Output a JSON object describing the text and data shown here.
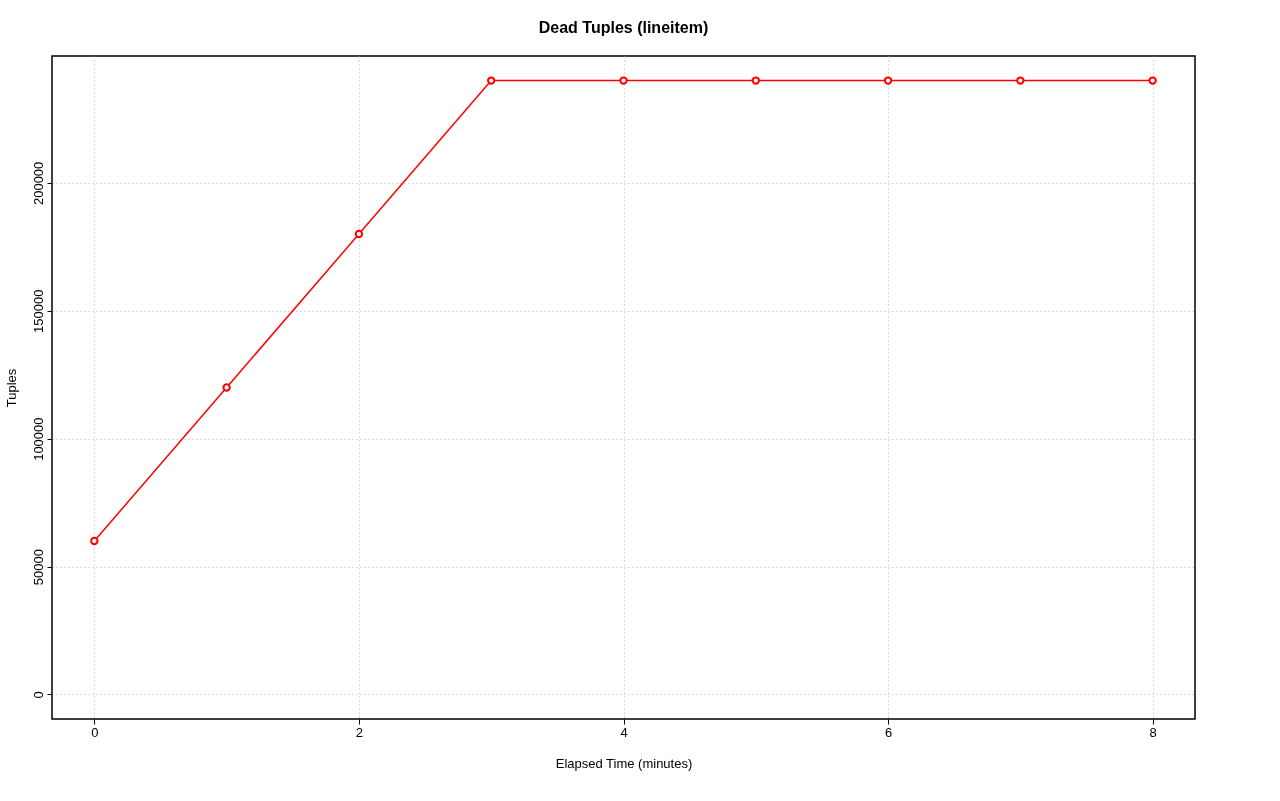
{
  "chart_data": {
    "type": "line",
    "title": "Dead Tuples (lineitem)",
    "xlabel": "Elapsed Time (minutes)",
    "ylabel": "Tuples",
    "x": [
      0,
      1,
      2,
      3,
      4,
      5,
      6,
      7,
      8
    ],
    "series": [
      {
        "color": "#ff0000",
        "values": [
          60000,
          120000,
          180000,
          240000,
          240000,
          240000,
          240000,
          240000,
          240000
        ]
      }
    ],
    "xlim": [
      -0.32,
      8.32
    ],
    "ylim": [
      -9600,
      249600
    ],
    "xticks": [
      0,
      2,
      4,
      6,
      8
    ],
    "yticks": [
      0,
      50000,
      100000,
      150000,
      200000
    ],
    "grid": true,
    "marker": "circle",
    "line_style": "solid",
    "legend": false
  }
}
